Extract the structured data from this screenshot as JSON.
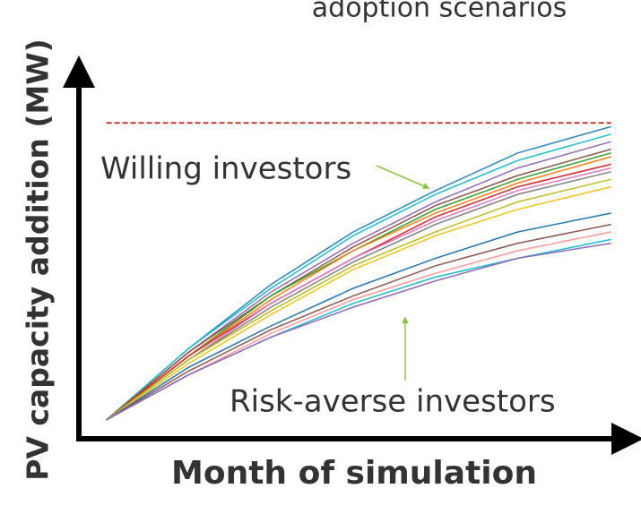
{
  "chart_data": {
    "type": "line",
    "title": "adoption scenarios",
    "x_label": "Month of simulation",
    "y_label": "PV capacity addition (MW)",
    "annotations": [
      "Willing investors",
      "Risk-averse investors"
    ],
    "reference_line": {
      "value": 84,
      "color": "#c0392b"
    },
    "xlim": [
      0,
      100
    ],
    "ylim": [
      0,
      100
    ],
    "x": [
      5,
      20,
      35,
      50,
      65,
      80,
      97
    ],
    "series": [
      {
        "color": "#2e86c1",
        "values": [
          5,
          24,
          41,
          55,
          66,
          76,
          83
        ]
      },
      {
        "color": "#17becf",
        "values": [
          5,
          24,
          40,
          54,
          65,
          74,
          81
        ]
      },
      {
        "color": "#9467bd",
        "values": [
          5,
          23,
          39,
          52,
          63,
          72,
          79
        ]
      },
      {
        "color": "#8c564b",
        "values": [
          5,
          23,
          38,
          51,
          62,
          70,
          77
        ]
      },
      {
        "color": "#2ca02c",
        "values": [
          5,
          22,
          38,
          50,
          61,
          69,
          76
        ]
      },
      {
        "color": "#ff7f0e",
        "values": [
          5,
          22,
          37,
          50,
          60,
          68,
          75
        ]
      },
      {
        "color": "#d62728",
        "values": [
          5,
          22,
          36,
          48,
          59,
          67,
          73
        ]
      },
      {
        "color": "#e377c2",
        "values": [
          5,
          21,
          36,
          48,
          58,
          66,
          72
        ]
      },
      {
        "color": "#7f7f7f",
        "values": [
          5,
          21,
          35,
          47,
          57,
          65,
          71
        ]
      },
      {
        "color": "#bcbd22",
        "values": [
          5,
          21,
          34,
          46,
          55,
          63,
          69
        ]
      },
      {
        "color": "#f1c40f",
        "values": [
          5,
          20,
          33,
          45,
          54,
          61,
          67
        ]
      },
      {
        "color": "#1f77b4",
        "values": [
          5,
          19,
          30,
          40,
          48,
          55,
          60
        ]
      },
      {
        "color": "#8c564b",
        "values": [
          5,
          18,
          29,
          38,
          46,
          52,
          57
        ]
      },
      {
        "color": "#ff9896",
        "values": [
          5,
          17,
          28,
          37,
          44,
          50,
          55
        ]
      },
      {
        "color": "#17becf",
        "values": [
          5,
          17,
          27,
          36,
          43,
          48,
          53
        ]
      },
      {
        "color": "#9467bd",
        "values": [
          5,
          17,
          27,
          35,
          42,
          48,
          52
        ]
      }
    ]
  }
}
